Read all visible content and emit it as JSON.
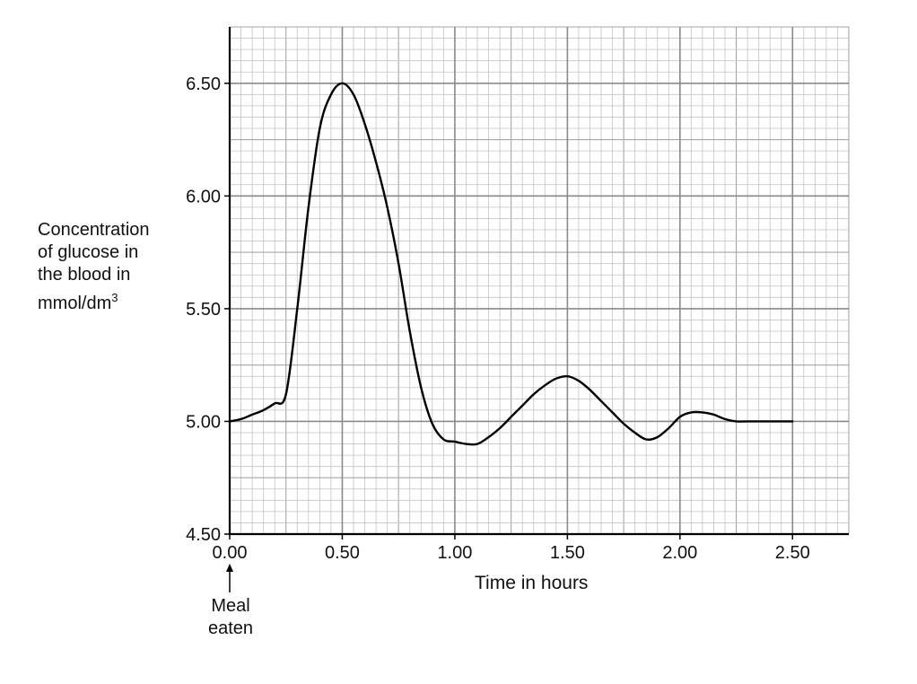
{
  "chart_data": {
    "type": "line",
    "xlabel": "Time in hours",
    "ylabel_lines": [
      "Concentration",
      "of glucose in",
      "the blood in",
      "mmol/dm"
    ],
    "ylabel_superscript": "3",
    "xlim": [
      0,
      2.75
    ],
    "ylim": [
      4.5,
      6.75
    ],
    "x_ticks": [
      "0.00",
      "0.50",
      "1.00",
      "1.50",
      "2.00",
      "2.50"
    ],
    "y_ticks": [
      "4.50",
      "5.00",
      "5.50",
      "6.00",
      "6.50"
    ],
    "grid": true,
    "annotation": {
      "lines": [
        "Meal",
        "eaten"
      ],
      "x": 0
    },
    "series": [
      {
        "x": [
          0,
          0.05,
          0.1,
          0.15,
          0.2,
          0.25,
          0.3,
          0.35,
          0.4,
          0.45,
          0.5,
          0.55,
          0.6,
          0.65,
          0.7,
          0.75,
          0.8,
          0.85,
          0.9,
          0.95,
          1.0,
          1.05,
          1.1,
          1.15,
          1.2,
          1.25,
          1.3,
          1.35,
          1.4,
          1.45,
          1.5,
          1.55,
          1.6,
          1.65,
          1.7,
          1.75,
          1.8,
          1.85,
          1.9,
          1.95,
          2.0,
          2.05,
          2.1,
          2.15,
          2.2,
          2.25,
          2.3,
          2.4,
          2.5
        ],
        "y": [
          5.0,
          5.01,
          5.03,
          5.05,
          5.08,
          5.12,
          5.5,
          5.95,
          6.3,
          6.45,
          6.5,
          6.45,
          6.32,
          6.15,
          5.95,
          5.7,
          5.4,
          5.15,
          4.99,
          4.92,
          4.91,
          4.9,
          4.9,
          4.93,
          4.97,
          5.02,
          5.07,
          5.12,
          5.16,
          5.19,
          5.2,
          5.18,
          5.14,
          5.09,
          5.04,
          4.99,
          4.95,
          4.92,
          4.93,
          4.97,
          5.02,
          5.04,
          5.04,
          5.03,
          5.01,
          5.0,
          5.0,
          5.0,
          5.0
        ]
      }
    ]
  }
}
